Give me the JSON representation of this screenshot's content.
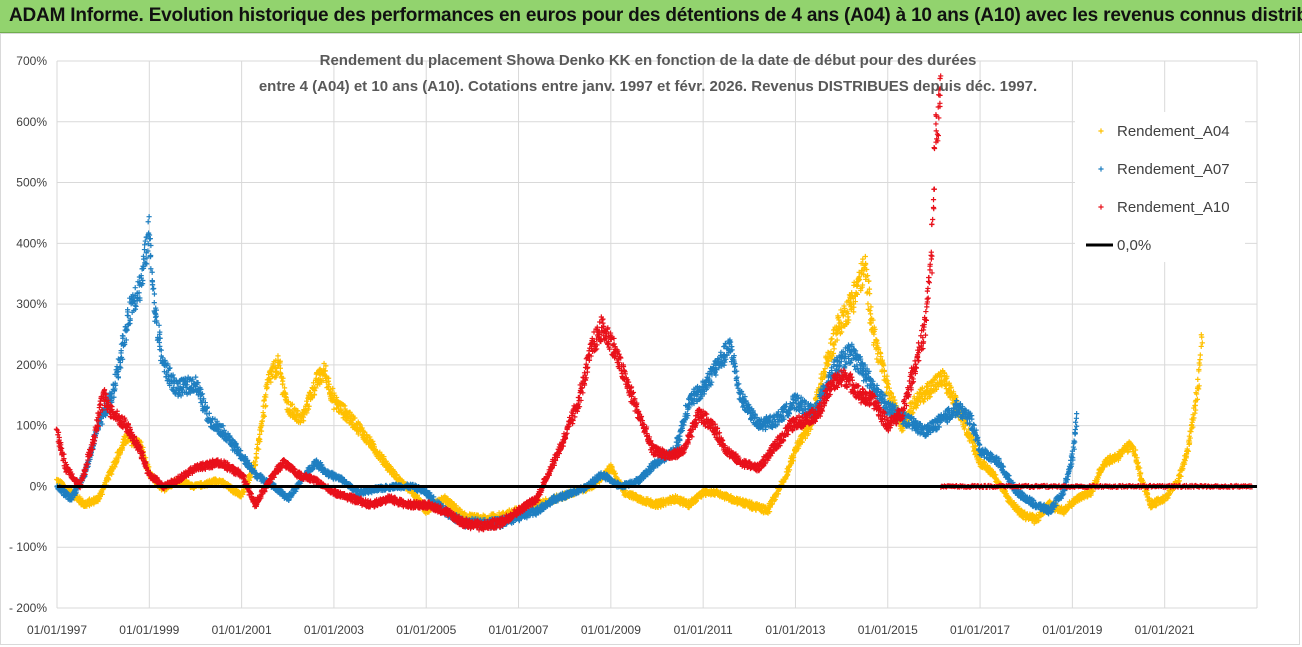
{
  "header": {
    "title": "ADAM Informe. Evolution historique des performances en euros pour des détentions de 4 ans (A04) à 10 ans (A10) avec les revenus connus distribués"
  },
  "colors": {
    "header_bg": "#92d36e",
    "a04": "#ffc000",
    "a07": "#1f7fc1",
    "a10": "#e8101a",
    "zero": "#000000",
    "grid": "#d9d9d9"
  },
  "chart_data": {
    "type": "scatter",
    "title_line1": "Rendement du placement Showa Denko KK en fonction de la date de début pour des durées",
    "title_line2": "entre 4 (A04) et 10 ans (A10). Cotations entre janv. 1997 et févr. 2026. Revenus DISTRIBUES depuis déc. 1997.",
    "y_ticks": [
      "700%",
      "600%",
      "500%",
      "400%",
      "300%",
      "200%",
      "100%",
      "0%",
      "- 100%",
      "- 200%"
    ],
    "ylim": [
      -200,
      700
    ],
    "x_ticks": [
      "01/01/1997",
      "01/01/1999",
      "01/01/2001",
      "01/01/2003",
      "01/01/2005",
      "01/01/2007",
      "01/01/2009",
      "01/01/2011",
      "01/01/2013",
      "01/01/2015",
      "01/01/2017",
      "01/01/2019",
      "01/01/2021"
    ],
    "xlim": [
      1997.0,
      2023.0
    ],
    "x_unit": "decimal year",
    "legend": [
      "Rendement_A04",
      "Rendement_A07",
      "Rendement_A10",
      "0,0%"
    ],
    "series": [
      {
        "name": "Rendement_A04",
        "anchors": [
          [
            1997.0,
            10
          ],
          [
            1997.3,
            -10
          ],
          [
            1997.6,
            -30
          ],
          [
            1997.9,
            -20
          ],
          [
            1998.2,
            30
          ],
          [
            1998.5,
            80
          ],
          [
            1998.8,
            70
          ],
          [
            1999.0,
            20
          ],
          [
            1999.3,
            -5
          ],
          [
            1999.6,
            10
          ],
          [
            2000.0,
            0
          ],
          [
            2000.5,
            10
          ],
          [
            2001.0,
            -15
          ],
          [
            2001.3,
            40
          ],
          [
            2001.6,
            180
          ],
          [
            2001.8,
            200
          ],
          [
            2002.0,
            130
          ],
          [
            2002.3,
            110
          ],
          [
            2002.6,
            170
          ],
          [
            2002.8,
            190
          ],
          [
            2003.0,
            140
          ],
          [
            2003.5,
            100
          ],
          [
            2003.9,
            60
          ],
          [
            2004.3,
            20
          ],
          [
            2004.7,
            -10
          ],
          [
            2005.0,
            -40
          ],
          [
            2005.4,
            -20
          ],
          [
            2005.8,
            -50
          ],
          [
            2006.2,
            -55
          ],
          [
            2006.6,
            -50
          ],
          [
            2007.0,
            -40
          ],
          [
            2007.4,
            -30
          ],
          [
            2007.8,
            -20
          ],
          [
            2008.2,
            -10
          ],
          [
            2008.6,
            0
          ],
          [
            2009.0,
            30
          ],
          [
            2009.3,
            -10
          ],
          [
            2009.6,
            -20
          ],
          [
            2010.0,
            -30
          ],
          [
            2010.4,
            -20
          ],
          [
            2010.7,
            -30
          ],
          [
            2011.0,
            -10
          ],
          [
            2011.3,
            -10
          ],
          [
            2011.6,
            -20
          ],
          [
            2012.0,
            -30
          ],
          [
            2012.4,
            -40
          ],
          [
            2012.8,
            20
          ],
          [
            2013.0,
            60
          ],
          [
            2013.3,
            100
          ],
          [
            2013.6,
            180
          ],
          [
            2013.9,
            260
          ],
          [
            2014.2,
            300
          ],
          [
            2014.5,
            360
          ],
          [
            2014.7,
            250
          ],
          [
            2015.0,
            160
          ],
          [
            2015.3,
            100
          ],
          [
            2015.6,
            140
          ],
          [
            2015.9,
            160
          ],
          [
            2016.2,
            180
          ],
          [
            2016.5,
            130
          ],
          [
            2016.8,
            80
          ],
          [
            2017.0,
            40
          ],
          [
            2017.3,
            20
          ],
          [
            2017.6,
            -20
          ],
          [
            2017.9,
            -45
          ],
          [
            2018.2,
            -55
          ],
          [
            2018.5,
            -30
          ],
          [
            2018.8,
            -40
          ],
          [
            2019.1,
            -20
          ],
          [
            2019.4,
            -10
          ],
          [
            2019.7,
            40
          ],
          [
            2020.0,
            50
          ],
          [
            2020.3,
            70
          ],
          [
            2020.5,
            10
          ],
          [
            2020.7,
            -30
          ],
          [
            2021.0,
            -20
          ],
          [
            2021.3,
            10
          ],
          [
            2021.5,
            60
          ],
          [
            2021.7,
            150
          ],
          [
            2021.8,
            240
          ]
        ]
      },
      {
        "name": "Rendement_A07",
        "anchors": [
          [
            1997.0,
            0
          ],
          [
            1997.3,
            -20
          ],
          [
            1997.6,
            20
          ],
          [
            1997.9,
            100
          ],
          [
            1998.2,
            150
          ],
          [
            1998.4,
            220
          ],
          [
            1998.6,
            300
          ],
          [
            1998.8,
            330
          ],
          [
            1999.0,
            420
          ],
          [
            1999.1,
            300
          ],
          [
            1999.3,
            200
          ],
          [
            1999.6,
            160
          ],
          [
            2000.0,
            170
          ],
          [
            2000.3,
            110
          ],
          [
            2000.6,
            90
          ],
          [
            2001.0,
            50
          ],
          [
            2001.3,
            20
          ],
          [
            2001.7,
            0
          ],
          [
            2002.0,
            -20
          ],
          [
            2002.3,
            10
          ],
          [
            2002.6,
            40
          ],
          [
            2002.9,
            20
          ],
          [
            2003.2,
            10
          ],
          [
            2003.5,
            -10
          ],
          [
            2003.9,
            -5
          ],
          [
            2004.3,
            0
          ],
          [
            2004.7,
            0
          ],
          [
            2005.0,
            -10
          ],
          [
            2005.4,
            -40
          ],
          [
            2005.8,
            -60
          ],
          [
            2006.2,
            -60
          ],
          [
            2006.6,
            -60
          ],
          [
            2007.0,
            -50
          ],
          [
            2007.4,
            -40
          ],
          [
            2007.8,
            -20
          ],
          [
            2008.2,
            -10
          ],
          [
            2008.5,
            0
          ],
          [
            2008.8,
            20
          ],
          [
            2009.2,
            0
          ],
          [
            2009.6,
            10
          ],
          [
            2010.0,
            40
          ],
          [
            2010.4,
            60
          ],
          [
            2010.7,
            140
          ],
          [
            2011.0,
            160
          ],
          [
            2011.3,
            200
          ],
          [
            2011.6,
            230
          ],
          [
            2011.8,
            150
          ],
          [
            2012.2,
            100
          ],
          [
            2012.6,
            110
          ],
          [
            2013.0,
            140
          ],
          [
            2013.4,
            120
          ],
          [
            2013.8,
            190
          ],
          [
            2014.2,
            220
          ],
          [
            2014.4,
            200
          ],
          [
            2014.7,
            160
          ],
          [
            2015.0,
            130
          ],
          [
            2015.4,
            110
          ],
          [
            2015.8,
            90
          ],
          [
            2016.2,
            110
          ],
          [
            2016.5,
            130
          ],
          [
            2016.8,
            110
          ],
          [
            2017.0,
            60
          ],
          [
            2017.4,
            40
          ],
          [
            2017.8,
            -10
          ],
          [
            2018.2,
            -30
          ],
          [
            2018.5,
            -40
          ],
          [
            2018.8,
            -10
          ],
          [
            2019.0,
            50
          ],
          [
            2019.1,
            110
          ]
        ]
      },
      {
        "name": "Rendement_A10",
        "anchors": [
          [
            1997.0,
            90
          ],
          [
            1997.2,
            30
          ],
          [
            1997.5,
            0
          ],
          [
            1997.8,
            80
          ],
          [
            1998.0,
            150
          ],
          [
            1998.2,
            120
          ],
          [
            1998.5,
            100
          ],
          [
            1998.8,
            60
          ],
          [
            1999.0,
            20
          ],
          [
            1999.3,
            0
          ],
          [
            1999.6,
            10
          ],
          [
            2000.0,
            30
          ],
          [
            2000.5,
            40
          ],
          [
            2001.0,
            20
          ],
          [
            2001.3,
            -30
          ],
          [
            2001.6,
            10
          ],
          [
            2001.9,
            40
          ],
          [
            2002.2,
            20
          ],
          [
            2002.6,
            10
          ],
          [
            2003.0,
            -10
          ],
          [
            2003.4,
            -20
          ],
          [
            2003.8,
            -30
          ],
          [
            2004.2,
            -20
          ],
          [
            2004.6,
            -30
          ],
          [
            2005.0,
            -30
          ],
          [
            2005.4,
            -40
          ],
          [
            2005.8,
            -60
          ],
          [
            2006.2,
            -65
          ],
          [
            2006.6,
            -60
          ],
          [
            2007.0,
            -40
          ],
          [
            2007.4,
            -20
          ],
          [
            2007.7,
            30
          ],
          [
            2008.0,
            80
          ],
          [
            2008.3,
            140
          ],
          [
            2008.6,
            230
          ],
          [
            2008.8,
            260
          ],
          [
            2009.0,
            240
          ],
          [
            2009.3,
            180
          ],
          [
            2009.6,
            120
          ],
          [
            2009.9,
            60
          ],
          [
            2010.3,
            50
          ],
          [
            2010.6,
            60
          ],
          [
            2010.9,
            120
          ],
          [
            2011.2,
            100
          ],
          [
            2011.5,
            60
          ],
          [
            2011.8,
            40
          ],
          [
            2012.2,
            30
          ],
          [
            2012.6,
            70
          ],
          [
            2012.9,
            100
          ],
          [
            2013.2,
            110
          ],
          [
            2013.5,
            120
          ],
          [
            2013.8,
            170
          ],
          [
            2014.1,
            180
          ],
          [
            2014.4,
            150
          ],
          [
            2014.7,
            140
          ],
          [
            2015.0,
            100
          ],
          [
            2015.3,
            120
          ],
          [
            2015.6,
            200
          ],
          [
            2015.8,
            260
          ],
          [
            2015.95,
            380
          ],
          [
            2016.05,
            600
          ],
          [
            2016.15,
            640
          ]
        ]
      },
      {
        "name": "0,0%",
        "values": [
          [
            1997.0,
            0
          ],
          [
            2023.0,
            0
          ]
        ]
      }
    ],
    "flat_segments": [
      {
        "series": "Rendement_A10",
        "from": 2016.15,
        "to": 2022.9,
        "value": 0
      }
    ]
  }
}
